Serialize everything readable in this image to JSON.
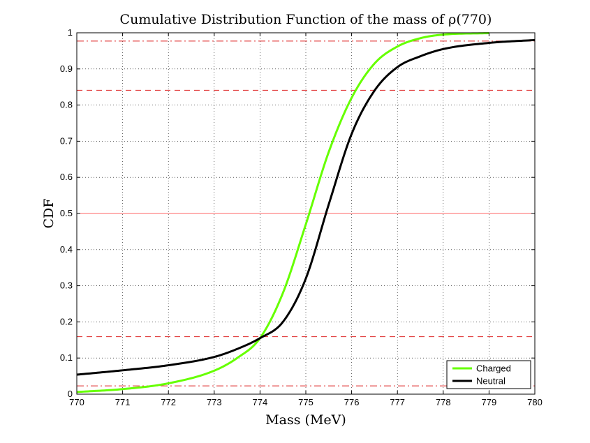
{
  "chart_data": {
    "type": "line",
    "title": "Cumulative Distribution Function of the mass of ρ(770)",
    "xlabel": "Mass (MeV)",
    "ylabel": "CDF",
    "xlim": [
      770,
      780
    ],
    "ylim": [
      0,
      1
    ],
    "xticks": [
      "770",
      "771",
      "772",
      "773",
      "774",
      "775",
      "776",
      "777",
      "778",
      "779",
      "780"
    ],
    "yticks": [
      "0",
      "0.1",
      "0.2",
      "0.3",
      "0.4",
      "0.5",
      "0.6",
      "0.7",
      "0.8",
      "0.9",
      "1"
    ],
    "grid": true,
    "legend_position": "bottom-right",
    "series": [
      {
        "name": "Charged",
        "color": "#66ff00",
        "x": [
          770,
          771,
          772,
          773,
          773.5,
          774,
          774.5,
          775,
          775.5,
          776,
          776.5,
          777,
          777.5,
          778,
          779
        ],
        "values": [
          0.006,
          0.014,
          0.03,
          0.065,
          0.1,
          0.155,
          0.28,
          0.47,
          0.67,
          0.82,
          0.915,
          0.962,
          0.985,
          0.995,
          0.999
        ]
      },
      {
        "name": "Neutral",
        "color": "#000000",
        "x": [
          770,
          771,
          772,
          773,
          773.5,
          774,
          774.5,
          775,
          775.5,
          776,
          776.5,
          777,
          777.5,
          778,
          779,
          780
        ],
        "values": [
          0.054,
          0.066,
          0.08,
          0.103,
          0.125,
          0.155,
          0.2,
          0.32,
          0.525,
          0.72,
          0.84,
          0.905,
          0.935,
          0.955,
          0.972,
          0.98
        ]
      }
    ],
    "reference_lines": [
      {
        "y": 0.5,
        "style": "solid",
        "color": "#ff6666"
      },
      {
        "y": 0.841,
        "style": "dashed",
        "color": "#dd2222"
      },
      {
        "y": 0.159,
        "style": "dashed",
        "color": "#dd2222"
      },
      {
        "y": 0.977,
        "style": "dashdot",
        "color": "#dd2222"
      },
      {
        "y": 0.023,
        "style": "dashdot",
        "color": "#dd2222"
      }
    ]
  }
}
